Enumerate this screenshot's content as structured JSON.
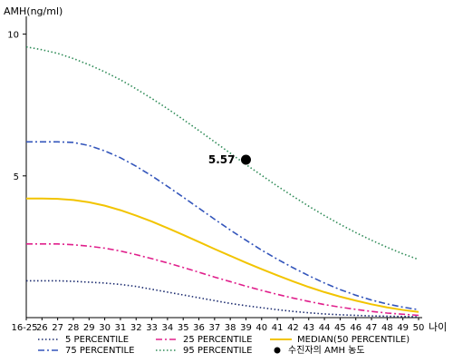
{
  "chart_data": {
    "type": "line",
    "ylabel": "AMH(ng/ml)",
    "xlabel": "나이",
    "ylim": [
      0,
      10.5
    ],
    "yticks": [
      5,
      10
    ],
    "x": [
      "16-25",
      "26",
      "27",
      "28",
      "29",
      "30",
      "31",
      "32",
      "33",
      "34",
      "35",
      "36",
      "37",
      "38",
      "39",
      "40",
      "41",
      "42",
      "43",
      "44",
      "45",
      "46",
      "47",
      "48",
      "49",
      "50"
    ],
    "series": [
      {
        "name": "5 PERCENTILE",
        "color": "#1a2a6e",
        "dash": "dot",
        "values": [
          1.3,
          1.3,
          1.3,
          1.28,
          1.25,
          1.22,
          1.17,
          1.1,
          1.0,
          0.9,
          0.8,
          0.7,
          0.6,
          0.5,
          0.42,
          0.35,
          0.28,
          0.22,
          0.17,
          0.13,
          0.1,
          0.08,
          0.06,
          0.05,
          0.04,
          0.03
        ]
      },
      {
        "name": "25 PERCENTILE",
        "color": "#e0208c",
        "dash": "dashdot",
        "values": [
          2.6,
          2.6,
          2.6,
          2.57,
          2.52,
          2.45,
          2.35,
          2.22,
          2.08,
          1.93,
          1.77,
          1.6,
          1.43,
          1.27,
          1.11,
          0.96,
          0.82,
          0.69,
          0.57,
          0.46,
          0.37,
          0.29,
          0.22,
          0.16,
          0.12,
          0.08
        ]
      },
      {
        "name": "MEDIAN(50 PERCENTILE)",
        "color": "#f2c400",
        "dash": "solid",
        "values": [
          4.2,
          4.2,
          4.19,
          4.15,
          4.07,
          3.95,
          3.79,
          3.6,
          3.39,
          3.16,
          2.92,
          2.67,
          2.42,
          2.18,
          1.94,
          1.71,
          1.49,
          1.28,
          1.08,
          0.9,
          0.74,
          0.6,
          0.47,
          0.36,
          0.27,
          0.2
        ]
      },
      {
        "name": "75 PERCENTILE",
        "color": "#3355bb",
        "dash": "dashdot",
        "values": [
          6.2,
          6.2,
          6.2,
          6.18,
          6.07,
          5.88,
          5.64,
          5.34,
          5.0,
          4.63,
          4.25,
          3.86,
          3.47,
          3.09,
          2.73,
          2.38,
          2.06,
          1.76,
          1.48,
          1.22,
          0.99,
          0.79,
          0.62,
          0.48,
          0.37,
          0.28
        ]
      },
      {
        "name": "95 PERCENTILE",
        "color": "#2e8b57",
        "dash": "dot",
        "values": [
          9.55,
          9.45,
          9.32,
          9.14,
          8.92,
          8.67,
          8.39,
          8.07,
          7.73,
          7.37,
          6.99,
          6.6,
          6.2,
          5.8,
          5.4,
          5.02,
          4.64,
          4.28,
          3.93,
          3.6,
          3.29,
          3.0,
          2.73,
          2.48,
          2.25,
          2.05
        ]
      }
    ],
    "marker": {
      "name": "수진자의 AMH 농도",
      "x": "39",
      "y": 5.57,
      "label": "5.57"
    },
    "legend_position": "bottom"
  }
}
